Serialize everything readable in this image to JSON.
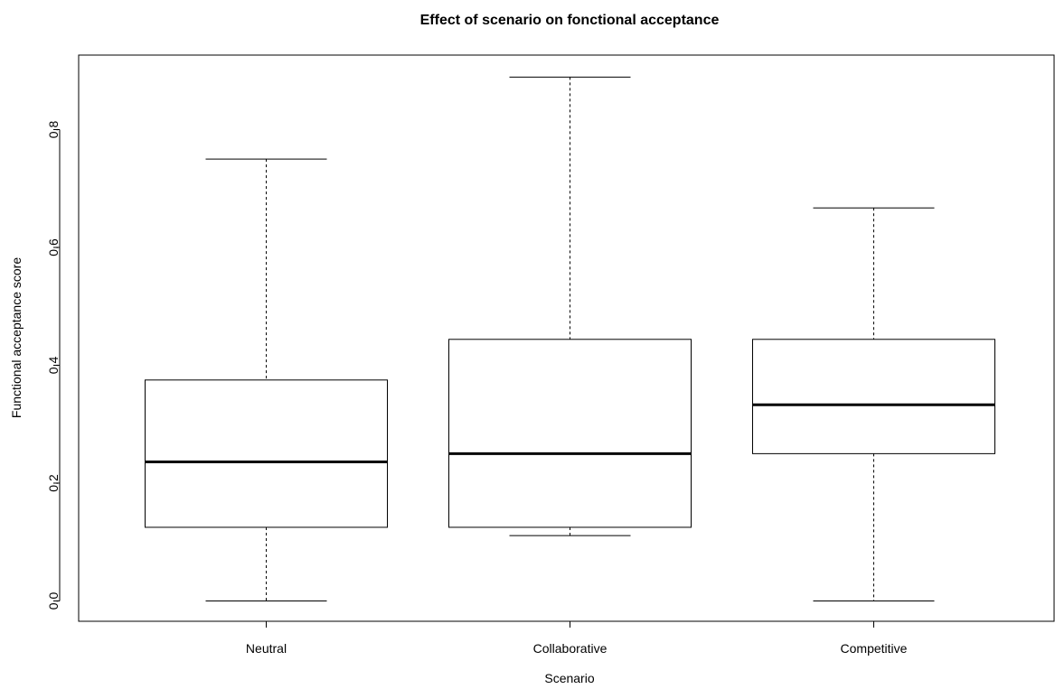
{
  "chart_data": {
    "type": "boxplot",
    "title": "Effect of scenario on fonctional acceptance",
    "xlabel": "Scenario",
    "ylabel": "Functional acceptance score",
    "categories": [
      "Neutral",
      "Collaborative",
      "Competitive"
    ],
    "y_ticks": [
      "0.0",
      "0.2",
      "0.4",
      "0.6",
      "0.8"
    ],
    "y_tick_values": [
      0.0,
      0.2,
      0.4,
      0.6,
      0.8
    ],
    "ylim": [
      -0.036,
      0.925
    ],
    "grid": false,
    "legend": "none",
    "boxes": [
      {
        "name": "Neutral",
        "min": 0.0,
        "q1": 0.125,
        "median": 0.236,
        "q3": 0.375,
        "max": 0.75
      },
      {
        "name": "Collaborative",
        "min": 0.111,
        "q1": 0.125,
        "median": 0.25,
        "q3": 0.444,
        "max": 0.889
      },
      {
        "name": "Competitive",
        "min": 0.0,
        "q1": 0.25,
        "median": 0.333,
        "q3": 0.444,
        "max": 0.667
      }
    ]
  }
}
